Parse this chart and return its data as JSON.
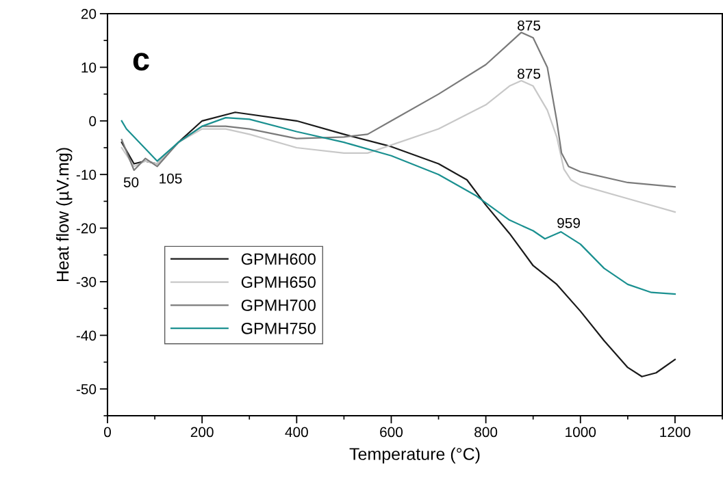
{
  "chart_data": {
    "type": "line",
    "xlabel": "Temperature (°C)",
    "ylabel": "Heat flow (µV.mg)",
    "xlim": [
      0,
      1300
    ],
    "xticks": [
      0,
      200,
      400,
      600,
      800,
      1000,
      1200
    ],
    "ylim": [
      -55,
      20
    ],
    "yticks": [
      -50,
      -40,
      -30,
      -20,
      -10,
      0,
      10,
      20
    ],
    "grid": false,
    "legend": "center left",
    "marker": "none",
    "line_style": "solid",
    "series": [
      {
        "name": "GPMH600",
        "color": "#1a1a1a",
        "x": [
          30,
          56,
          80,
          105,
          150,
          200,
          270,
          400,
          500,
          600,
          700,
          760,
          800,
          850,
          900,
          950,
          1000,
          1050,
          1100,
          1130,
          1160,
          1200
        ],
        "values": [
          -4,
          -8,
          -7.5,
          -8,
          -4,
          0,
          1.6,
          0,
          -2.5,
          -4.8,
          -8,
          -11,
          -15.7,
          -21,
          -27,
          -30.5,
          -35.5,
          -41,
          -46,
          -47.7,
          -47,
          -44.5
        ]
      },
      {
        "name": "GPMH650",
        "color": "#c8c8c8",
        "x": [
          30,
          56,
          80,
          105,
          150,
          200,
          250,
          300,
          400,
          500,
          550,
          600,
          700,
          800,
          850,
          875,
          900,
          930,
          950,
          965,
          980,
          1000,
          1100,
          1200
        ],
        "values": [
          -5,
          -8.5,
          -7.5,
          -8,
          -4,
          -1.5,
          -1.5,
          -2.5,
          -5,
          -6,
          -6,
          -4.5,
          -1.5,
          3,
          6.5,
          7.5,
          6.5,
          2,
          -3,
          -9,
          -11,
          -12,
          -14.5,
          -17
        ]
      },
      {
        "name": "GPMH700",
        "color": "#7a7a7a",
        "x": [
          30,
          56,
          80,
          105,
          150,
          200,
          250,
          300,
          400,
          500,
          550,
          600,
          700,
          800,
          850,
          875,
          900,
          930,
          950,
          960,
          975,
          1000,
          1100,
          1200
        ],
        "values": [
          -3.5,
          -9.2,
          -7,
          -8.5,
          -4,
          -1,
          -1,
          -1.5,
          -3.3,
          -3,
          -2.5,
          0,
          5,
          10.5,
          14.5,
          16.5,
          15.5,
          10,
          0,
          -6,
          -8.5,
          -9.5,
          -11.5,
          -12.3
        ]
      },
      {
        "name": "GPMH750",
        "color": "#1a9090",
        "x": [
          30,
          40,
          105,
          150,
          200,
          250,
          300,
          400,
          500,
          600,
          700,
          780,
          850,
          900,
          925,
          959,
          1000,
          1050,
          1100,
          1150,
          1200
        ],
        "values": [
          0,
          -1.5,
          -7.5,
          -4,
          -1,
          0.6,
          0.3,
          -2,
          -4,
          -6.5,
          -10,
          -14,
          -18.5,
          -20.5,
          -22,
          -20.7,
          -23,
          -27.5,
          -30.5,
          -32,
          -32.3
        ]
      }
    ],
    "annotations": [
      "c",
      {
        "text": "50",
        "x": 50,
        "y": -9.2
      },
      {
        "text": "105",
        "x": 105,
        "y": -8.5
      },
      {
        "text": "875",
        "x": 875,
        "y": 16.5
      },
      {
        "text": "875",
        "x": 875,
        "y": 7.5
      },
      {
        "text": "959",
        "x": 959,
        "y": -20.7
      }
    ]
  }
}
